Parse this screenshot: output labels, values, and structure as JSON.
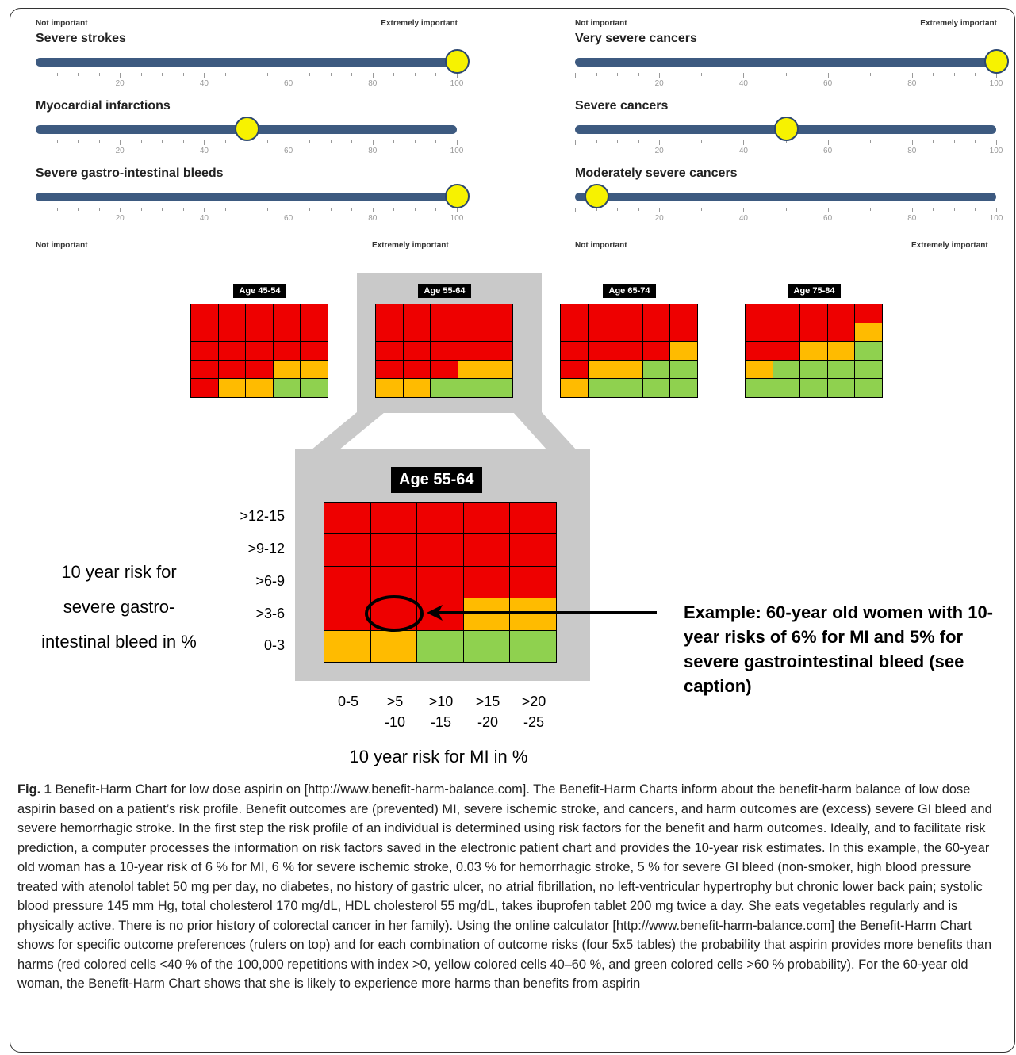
{
  "sliders": {
    "not_important": "Not important",
    "extremely_important": "Extremely important",
    "tick_labels": [
      "20",
      "40",
      "60",
      "80",
      "100"
    ],
    "left": [
      {
        "title": "Severe strokes",
        "value": 100
      },
      {
        "title": "Myocardial infarctions",
        "value": 50
      },
      {
        "title": "Severe gastro-intestinal bleeds",
        "value": 100
      }
    ],
    "right": [
      {
        "title": "Very severe cancers",
        "value": 100
      },
      {
        "title": "Severe cancers",
        "value": 50
      },
      {
        "title": "Moderately severe cancers",
        "value": 5
      }
    ]
  },
  "colors": {
    "red": "#ee0000",
    "yellow": "#ffbb00",
    "green": "#8fd14f",
    "track": "#3d5a80",
    "knob": "#f7f200"
  },
  "thumbnails": [
    {
      "title": "Age 45-54",
      "grid": [
        [
          "R",
          "R",
          "R",
          "R",
          "R"
        ],
        [
          "R",
          "R",
          "R",
          "R",
          "R"
        ],
        [
          "R",
          "R",
          "R",
          "R",
          "R"
        ],
        [
          "R",
          "R",
          "R",
          "Y",
          "Y"
        ],
        [
          "R",
          "Y",
          "Y",
          "G",
          "G"
        ]
      ]
    },
    {
      "title": "Age 55-64",
      "grid": [
        [
          "R",
          "R",
          "R",
          "R",
          "R"
        ],
        [
          "R",
          "R",
          "R",
          "R",
          "R"
        ],
        [
          "R",
          "R",
          "R",
          "R",
          "R"
        ],
        [
          "R",
          "R",
          "R",
          "Y",
          "Y"
        ],
        [
          "Y",
          "Y",
          "G",
          "G",
          "G"
        ]
      ]
    },
    {
      "title": "Age 65-74",
      "grid": [
        [
          "R",
          "R",
          "R",
          "R",
          "R"
        ],
        [
          "R",
          "R",
          "R",
          "R",
          "R"
        ],
        [
          "R",
          "R",
          "R",
          "R",
          "Y"
        ],
        [
          "R",
          "Y",
          "Y",
          "G",
          "G"
        ],
        [
          "Y",
          "G",
          "G",
          "G",
          "G"
        ]
      ]
    },
    {
      "title": "Age 75-84",
      "grid": [
        [
          "R",
          "R",
          "R",
          "R",
          "R"
        ],
        [
          "R",
          "R",
          "R",
          "R",
          "Y"
        ],
        [
          "R",
          "R",
          "Y",
          "Y",
          "G"
        ],
        [
          "Y",
          "G",
          "G",
          "G",
          "G"
        ],
        [
          "G",
          "G",
          "G",
          "G",
          "G"
        ]
      ]
    }
  ],
  "zoom": {
    "title": "Age 55-64",
    "row_labels": [
      ">12-15",
      ">9-12",
      ">6-9",
      ">3-6",
      "0-3"
    ],
    "col_labels": [
      [
        "0-5",
        ""
      ],
      [
        ">5",
        "-10"
      ],
      [
        ">10",
        "-15"
      ],
      [
        ">15",
        "-20"
      ],
      [
        ">20",
        "-25"
      ]
    ],
    "y_axis_title": [
      "10 year risk for",
      "severe gastro-",
      "intestinal bleed in %"
    ],
    "x_axis_title": "10 year risk for MI in %",
    "example": "Example: 60-year old women with 10-year risks of 6% for MI and 5% for severe gastrointestinal bleed (see caption)"
  },
  "caption": {
    "fig_label": "Fig. 1",
    "text": " Benefit-Harm Chart for low dose aspirin on [http://www.benefit-harm-balance.com]. The Benefit-Harm Charts inform about the benefit-harm balance of low dose aspirin based on a patient’s risk profile. Benefit outcomes are (prevented) MI, severe ischemic stroke, and cancers, and harm outcomes are (excess) severe GI bleed and severe hemorrhagic stroke. In the first step the risk profile of an individual is determined using risk factors for the benefit and harm outcomes. Ideally, and to facilitate risk prediction, a computer processes the information on risk factors saved in the electronic patient chart and provides the 10-year risk estimates. In this example, the 60-year old woman has a 10-year risk of 6 % for MI, 6 % for severe ischemic stroke, 0.03 % for hemorrhagic stroke, 5 % for severe GI bleed (non-smoker, high blood pressure treated with atenolol tablet 50 mg per day, no diabetes, no history of gastric ulcer, no atrial fibrillation, no left-ventricular hypertrophy but chronic lower back pain; systolic blood pressure 145 mm Hg, total cholesterol 170 mg/dL, HDL cholesterol 55 mg/dL, takes ibuprofen tablet 200 mg twice a day. She eats vegetables regularly and is physically active. There is no prior history of colorectal cancer in her family). Using the online calculator [http://www.benefit-harm-balance.com] the Benefit-Harm Chart shows for specific outcome preferences (rulers on top) and for each combination of outcome risks (four 5x5 tables) the probability that aspirin provides more benefits than harms (red colored cells <40 % of the 100,000 repetitions with index >0, yellow colored cells 40–60 %, and green colored cells >60 % probability). For the 60-year old woman, the Benefit-Harm Chart shows that she is likely to experience more harms than benefits from aspirin"
  }
}
